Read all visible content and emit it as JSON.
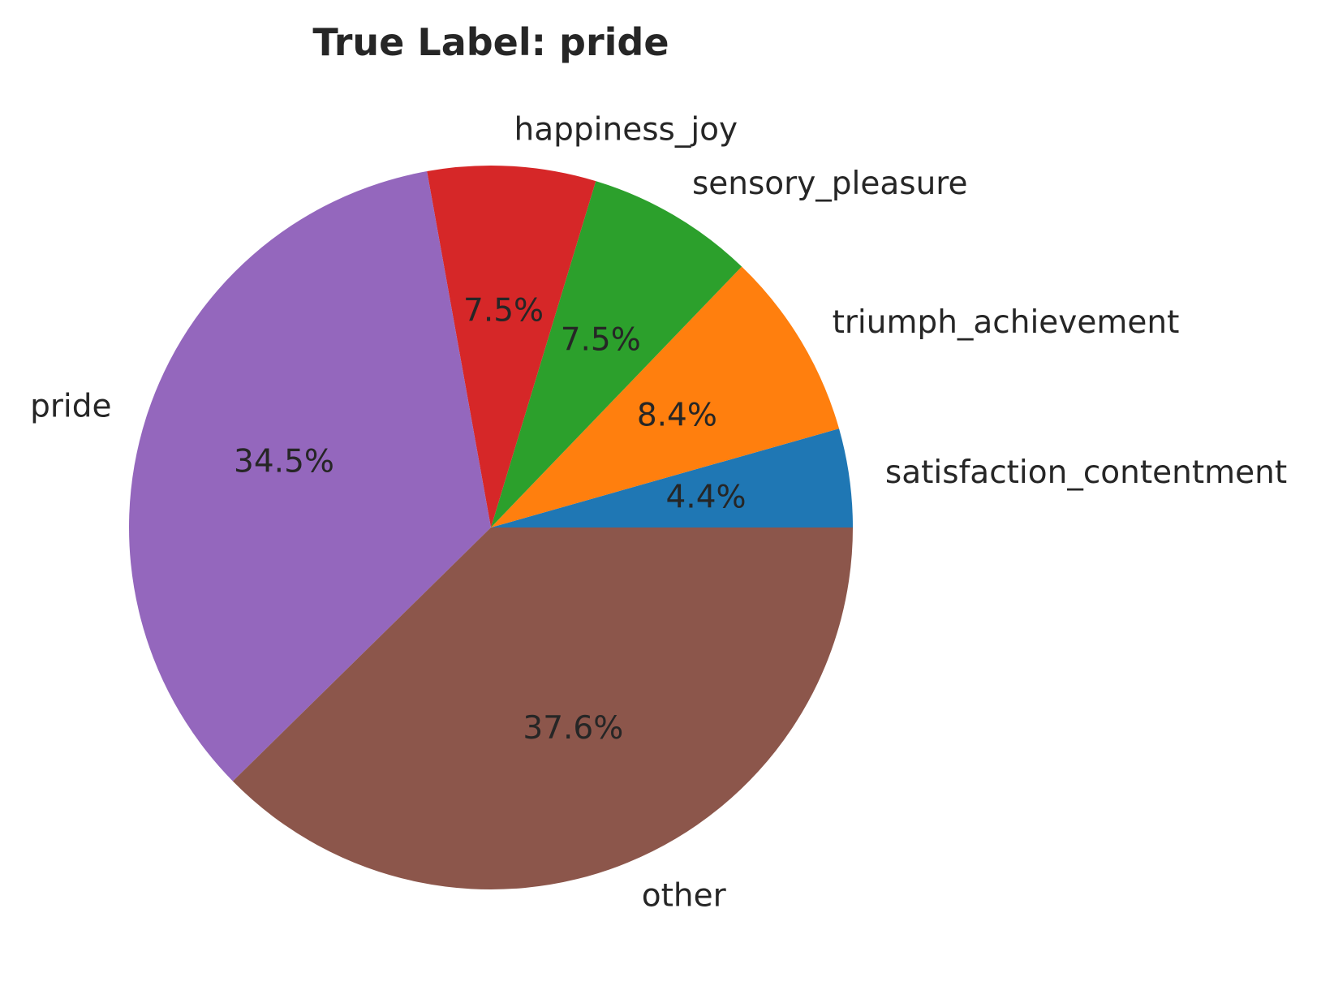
{
  "chart_data": {
    "type": "pie",
    "title": "True Label: pride",
    "slices": [
      {
        "label": "satisfaction_contentment",
        "value": 4.4,
        "pct_label": "4.4%",
        "color": "#1f77b4"
      },
      {
        "label": "triumph_achievement",
        "value": 8.4,
        "pct_label": "8.4%",
        "color": "#ff7f0e"
      },
      {
        "label": "sensory_pleasure",
        "value": 7.5,
        "pct_label": "7.5%",
        "color": "#2ca02c"
      },
      {
        "label": "happiness_joy",
        "value": 7.5,
        "pct_label": "7.5%",
        "color": "#d62728"
      },
      {
        "label": "pride",
        "value": 34.5,
        "pct_label": "34.5%",
        "color": "#9467bd"
      },
      {
        "label": "other",
        "value": 37.6,
        "pct_label": "37.6%",
        "color": "#8c564b"
      }
    ],
    "start_angle": 0,
    "direction": "counterclockwise",
    "legend": "none"
  }
}
